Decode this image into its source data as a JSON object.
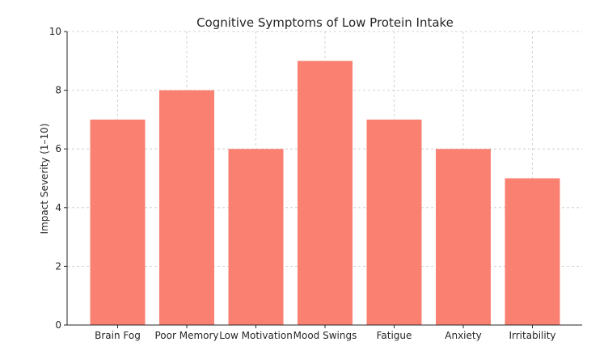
{
  "chart_data": {
    "type": "bar",
    "title": "Cognitive Symptoms of Low Protein Intake",
    "xlabel": "",
    "ylabel": "Impact Severity (1–10)",
    "categories": [
      "Brain Fog",
      "Poor Memory",
      "Low Motivation",
      "Mood Swings",
      "Fatigue",
      "Anxiety",
      "Irritability"
    ],
    "values": [
      7,
      8,
      6,
      9,
      7,
      6,
      5
    ],
    "ylim": [
      0,
      10
    ],
    "yticks": [
      0,
      2,
      4,
      6,
      8,
      10
    ],
    "grid": true,
    "bar_color": "#fa8072"
  }
}
